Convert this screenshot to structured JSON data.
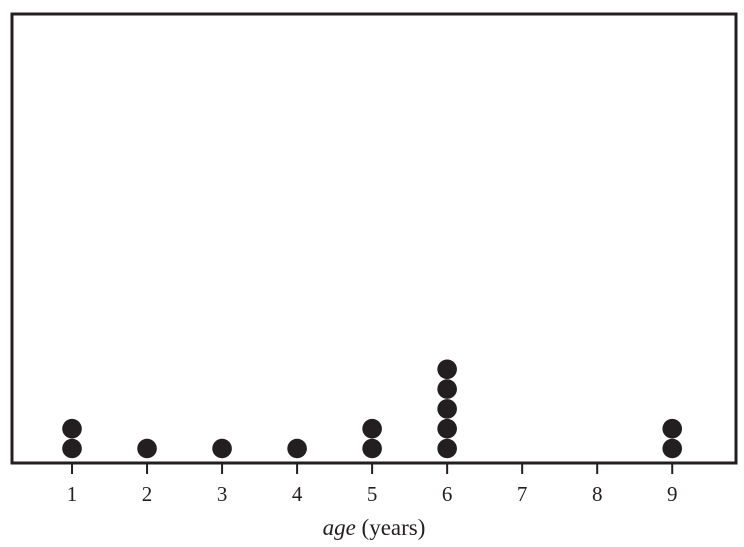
{
  "chart_data": {
    "type": "dot",
    "title": "",
    "xlabel": {
      "italic_part": "age",
      "rest": "(years)"
    },
    "ylabel": "",
    "x_ticks": [
      1,
      2,
      3,
      4,
      5,
      6,
      7,
      8,
      9
    ],
    "xlim": [
      0.2,
      9.85
    ],
    "points": [
      {
        "x": 1,
        "count": 2
      },
      {
        "x": 2,
        "count": 1
      },
      {
        "x": 3,
        "count": 1
      },
      {
        "x": 4,
        "count": 1
      },
      {
        "x": 5,
        "count": 2
      },
      {
        "x": 6,
        "count": 5
      },
      {
        "x": 7,
        "count": 0
      },
      {
        "x": 8,
        "count": 0
      },
      {
        "x": 9,
        "count": 2
      }
    ],
    "grid": false,
    "colors": {
      "dot": "#231f20",
      "frame": "#231f20"
    }
  }
}
